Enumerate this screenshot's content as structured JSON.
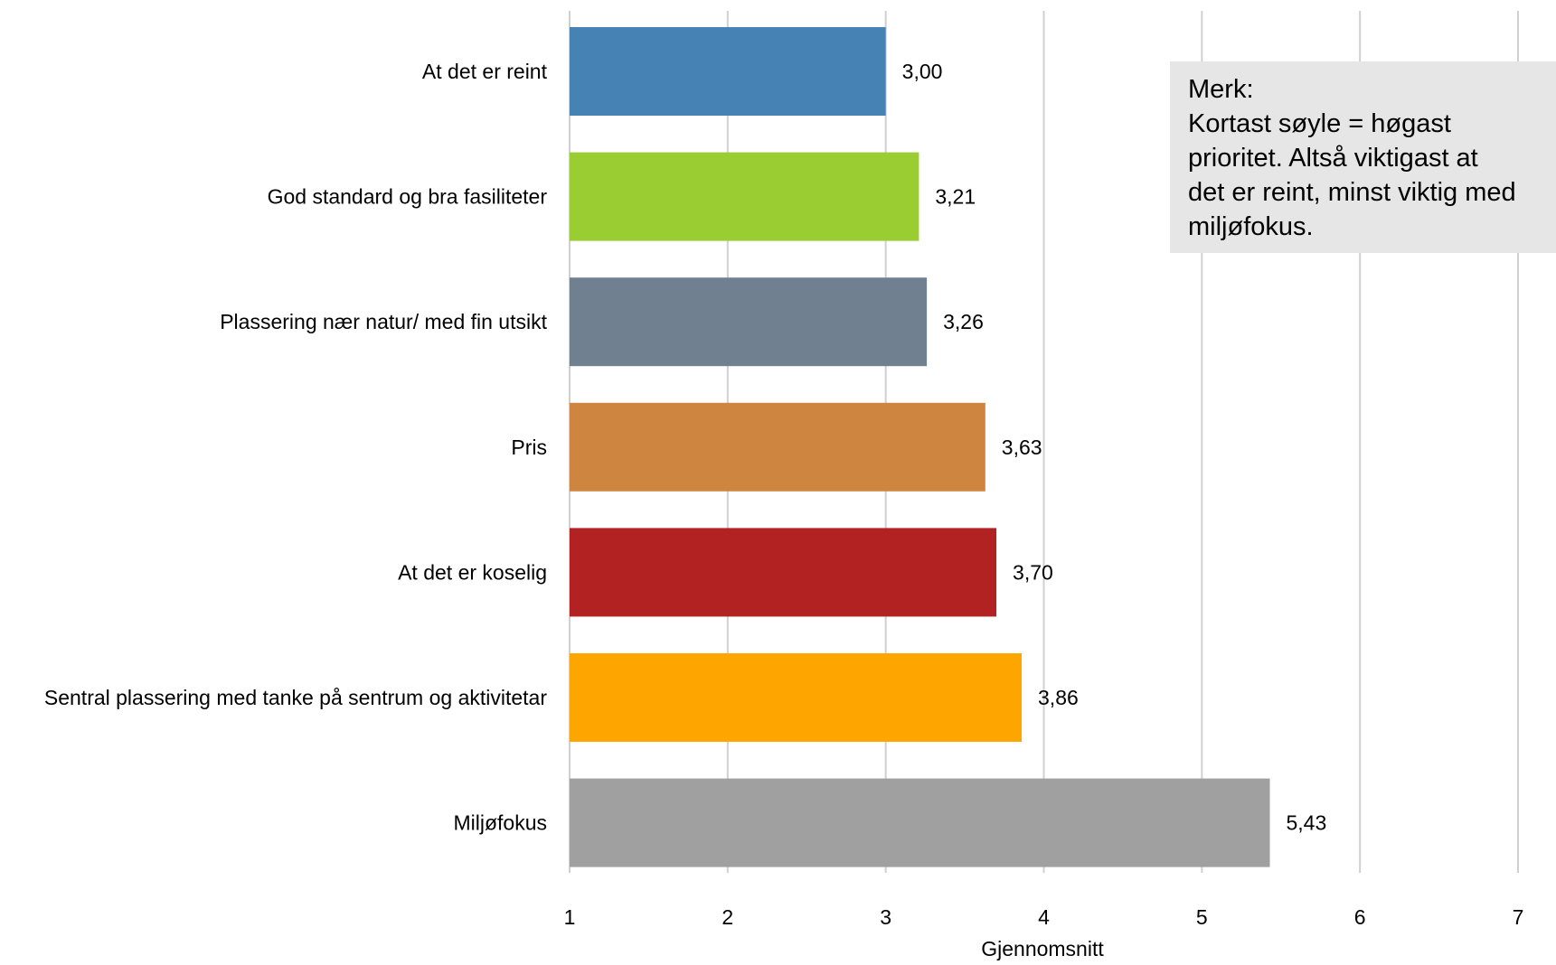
{
  "chart_data": {
    "type": "bar",
    "orientation": "horizontal",
    "categories": [
      "At det er reint",
      "God standard og bra fasiliteter",
      "Plassering nær natur/ med fin utsikt",
      "Pris",
      "At det er koselig",
      "Sentral plassering med tanke på sentrum og aktivitetar",
      "Miljøfokus"
    ],
    "values": [
      3.0,
      3.21,
      3.26,
      3.63,
      3.7,
      3.86,
      5.43
    ],
    "value_labels": [
      "3,00",
      "3,21",
      "3,26",
      "3,63",
      "3,70",
      "3,86",
      "5,43"
    ],
    "colors": [
      "#4682b4",
      "#9acd32",
      "#708090",
      "#cd853f",
      "#b22222",
      "#ffa500",
      "#a0a0a0"
    ],
    "xlabel": "Gjennomsnitt",
    "xlim": [
      1,
      7
    ],
    "xticks": [
      "1",
      "2",
      "3",
      "4",
      "5",
      "6",
      "7"
    ],
    "grid": true,
    "annotation": {
      "title": "Merk:",
      "lines": [
        "Kortast søyle = høgast",
        "prioritet. Altså viktigast at",
        "det er reint, minst viktig med",
        "miljøfokus."
      ]
    }
  }
}
